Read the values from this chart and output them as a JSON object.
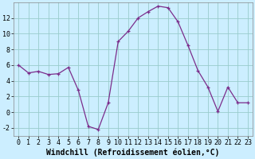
{
  "x": [
    0,
    1,
    2,
    3,
    4,
    5,
    6,
    7,
    8,
    9,
    10,
    11,
    12,
    13,
    14,
    15,
    16,
    17,
    18,
    19,
    20,
    21,
    22,
    23
  ],
  "y": [
    6,
    5,
    5.2,
    4.8,
    4.9,
    5.7,
    2.8,
    -1.8,
    -2.2,
    1.2,
    9,
    10.3,
    12,
    12.8,
    13.5,
    13.3,
    11.5,
    8.5,
    5.3,
    3.2,
    0.1,
    3.2,
    1.2,
    1.2
  ],
  "line_color": "#7b2d8b",
  "marker": "+",
  "marker_color": "#7b2d8b",
  "bg_color": "#cceeff",
  "grid_color": "#99cccc",
  "xlabel": "Windchill (Refroidissement éolien,°C)",
  "xlim": [
    -0.5,
    23.5
  ],
  "ylim": [
    -3,
    14
  ],
  "yticks": [
    -2,
    0,
    2,
    4,
    6,
    8,
    10,
    12
  ],
  "xticks": [
    0,
    1,
    2,
    3,
    4,
    5,
    6,
    7,
    8,
    9,
    10,
    11,
    12,
    13,
    14,
    15,
    16,
    17,
    18,
    19,
    20,
    21,
    22,
    23
  ],
  "tick_fontsize": 6,
  "xlabel_fontsize": 7
}
